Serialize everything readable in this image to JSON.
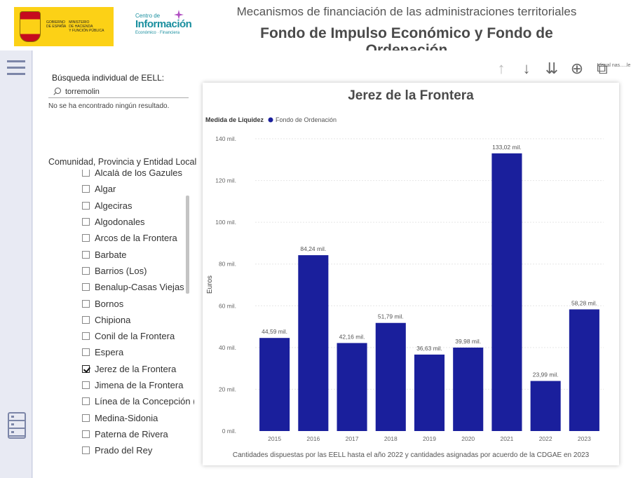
{
  "header": {
    "gov_logo_text": [
      "GOBIERNO",
      "DE ESPAÑA",
      "MINISTERIO",
      "DE HACIENDA",
      "Y FUNCIÓN PÚBLICA"
    ],
    "centro_small": "Centro de",
    "centro_big": "Información",
    "centro_tag": "Económico · Financiera",
    "title_line1": "Mecanismos de financiación de las administraciones territoriales",
    "title_line2": "Fondo de Impulso Económico y Fondo de Ordenación"
  },
  "toolbar": {
    "visual_label": "Visual nas.....le"
  },
  "search": {
    "label": "Búsqueda individual de EELL:",
    "value": "torremolin",
    "no_result": "No se ha encontrado ningún resultado."
  },
  "list": {
    "title": "Comunidad, Provincia y Entidad Local",
    "items": [
      {
        "label": "Alcalá de los Gazules",
        "checked": false
      },
      {
        "label": "Algar",
        "checked": false
      },
      {
        "label": "Algeciras",
        "checked": false
      },
      {
        "label": "Algodonales",
        "checked": false
      },
      {
        "label": "Arcos de la Frontera",
        "checked": false
      },
      {
        "label": "Barbate",
        "checked": false
      },
      {
        "label": "Barrios (Los)",
        "checked": false
      },
      {
        "label": "Benalup-Casas Viejas",
        "checked": false
      },
      {
        "label": "Bornos",
        "checked": false
      },
      {
        "label": "Chipiona",
        "checked": false
      },
      {
        "label": "Conil de la Frontera",
        "checked": false
      },
      {
        "label": "Espera",
        "checked": false
      },
      {
        "label": "Jerez de la Frontera",
        "checked": true
      },
      {
        "label": "Jimena de la Frontera",
        "checked": false
      },
      {
        "label": "Línea de la Concepción (La)",
        "checked": false
      },
      {
        "label": "Medina-Sidonia",
        "checked": false
      },
      {
        "label": "Paterna de Rivera",
        "checked": false
      },
      {
        "label": "Prado del Rey",
        "checked": false
      }
    ]
  },
  "chart_data": {
    "type": "bar",
    "title": "Jerez de la Frontera",
    "legend_title": "Medida de Liquidez",
    "series": [
      {
        "name": "Fondo de Ordenación",
        "color": "#1a1f9c",
        "values": [
          44.59,
          84.24,
          42.16,
          51.79,
          36.63,
          39.98,
          133.02,
          23.99,
          58.28
        ]
      }
    ],
    "categories": [
      "2015",
      "2016",
      "2017",
      "2018",
      "2019",
      "2020",
      "2021",
      "2022",
      "2023"
    ],
    "data_labels": [
      "44,59 mil.",
      "84,24 mil.",
      "42,16 mil.",
      "51,79 mil.",
      "36,63 mil.",
      "39,98 mil.",
      "133,02 mil.",
      "23,99 mil.",
      "58,28 mil."
    ],
    "ylabel": "Euros",
    "yticks": [
      0,
      20,
      40,
      60,
      80,
      100,
      120,
      140
    ],
    "ytick_labels": [
      "0 mil.",
      "20 mil.",
      "40 mil.",
      "60 mil.",
      "80 mil.",
      "100 mil.",
      "120 mil.",
      "140 mil."
    ],
    "ylim": [
      0,
      140
    ],
    "grid": true,
    "caption": "Cantidades dispuestas por las EELL hasta el año 2022 y cantidades asignadas por acuerdo de la CDGAE en 2023"
  }
}
